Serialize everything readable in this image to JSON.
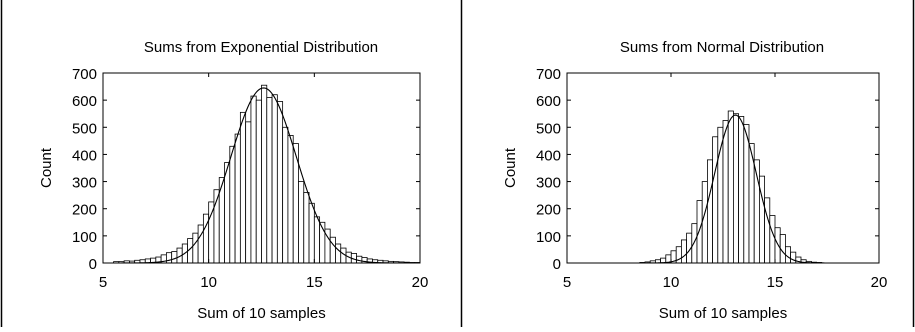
{
  "chart_data": [
    {
      "type": "bar",
      "title": "Sums from Exponential Distribution",
      "xlabel": "Sum of 10 samples",
      "ylabel": "Count",
      "xlim": [
        5,
        20
      ],
      "ylim": [
        0,
        700
      ],
      "xticks": [
        5,
        10,
        15,
        20
      ],
      "yticks": [
        0,
        100,
        200,
        300,
        400,
        500,
        600,
        700
      ],
      "bin_width": 0.25,
      "bin_starts": [
        5.5,
        5.75,
        6.0,
        6.25,
        6.5,
        6.75,
        7.0,
        7.25,
        7.5,
        7.75,
        8.0,
        8.25,
        8.5,
        8.75,
        9.0,
        9.25,
        9.5,
        9.75,
        10.0,
        10.25,
        10.5,
        10.75,
        11.0,
        11.25,
        11.5,
        11.75,
        12.0,
        12.25,
        12.5,
        12.75,
        13.0,
        13.25,
        13.5,
        13.75,
        14.0,
        14.25,
        14.5,
        14.75,
        15.0,
        15.25,
        15.5,
        15.75,
        16.0,
        16.25,
        16.5,
        16.75,
        17.0,
        17.25,
        17.5,
        17.75,
        18.0,
        18.25,
        18.5,
        18.75,
        19.0,
        19.25,
        19.5,
        19.75
      ],
      "values": [
        5,
        5,
        8,
        7,
        10,
        12,
        15,
        18,
        22,
        30,
        38,
        42,
        55,
        70,
        90,
        110,
        140,
        180,
        225,
        270,
        315,
        370,
        430,
        475,
        555,
        520,
        615,
        600,
        655,
        610,
        620,
        595,
        500,
        470,
        440,
        300,
        260,
        220,
        170,
        150,
        125,
        95,
        70,
        55,
        40,
        35,
        25,
        20,
        15,
        12,
        10,
        8,
        6,
        5,
        4,
        3,
        2,
        2
      ],
      "fit_curve": {
        "type": "normal",
        "mean": 12.6,
        "sd": 1.55,
        "peak": 645
      }
    },
    {
      "type": "bar",
      "title": "Sums from Normal Distribution",
      "xlabel": "Sum of 10 samples",
      "ylabel": "Count",
      "xlim": [
        5,
        20
      ],
      "ylim": [
        0,
        700
      ],
      "xticks": [
        5,
        10,
        15,
        20
      ],
      "yticks": [
        0,
        100,
        200,
        300,
        400,
        500,
        600,
        700
      ],
      "bin_width": 0.25,
      "bin_starts": [
        8.5,
        8.75,
        9.0,
        9.25,
        9.5,
        9.75,
        10.0,
        10.25,
        10.5,
        10.75,
        11.0,
        11.25,
        11.5,
        11.75,
        12.0,
        12.25,
        12.5,
        12.75,
        13.0,
        13.25,
        13.5,
        13.75,
        14.0,
        14.25,
        14.5,
        14.75,
        15.0,
        15.25,
        15.5,
        15.75,
        16.0,
        16.25,
        16.5,
        16.75,
        17.0
      ],
      "values": [
        2,
        4,
        8,
        12,
        18,
        30,
        45,
        60,
        85,
        110,
        145,
        230,
        300,
        380,
        465,
        500,
        525,
        560,
        550,
        540,
        510,
        440,
        380,
        320,
        240,
        175,
        130,
        105,
        60,
        40,
        22,
        12,
        6,
        3,
        2
      ],
      "fit_curve": {
        "type": "normal",
        "mean": 13.1,
        "sd": 1.0,
        "peak": 545
      }
    }
  ]
}
